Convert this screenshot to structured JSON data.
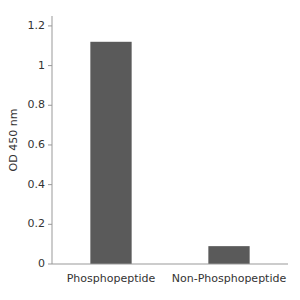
{
  "chart_data": {
    "type": "bar",
    "categories": [
      "Phosphopeptide",
      "Non-Phosphopeptide"
    ],
    "values": [
      1.12,
      0.09
    ],
    "color": "#5a5a5a",
    "ylabel": "OD 450 nm",
    "ylim": [
      0,
      1.25
    ],
    "yticks": [
      0,
      0.2,
      0.4,
      0.6,
      0.8,
      1,
      1.2
    ],
    "grid": false
  }
}
